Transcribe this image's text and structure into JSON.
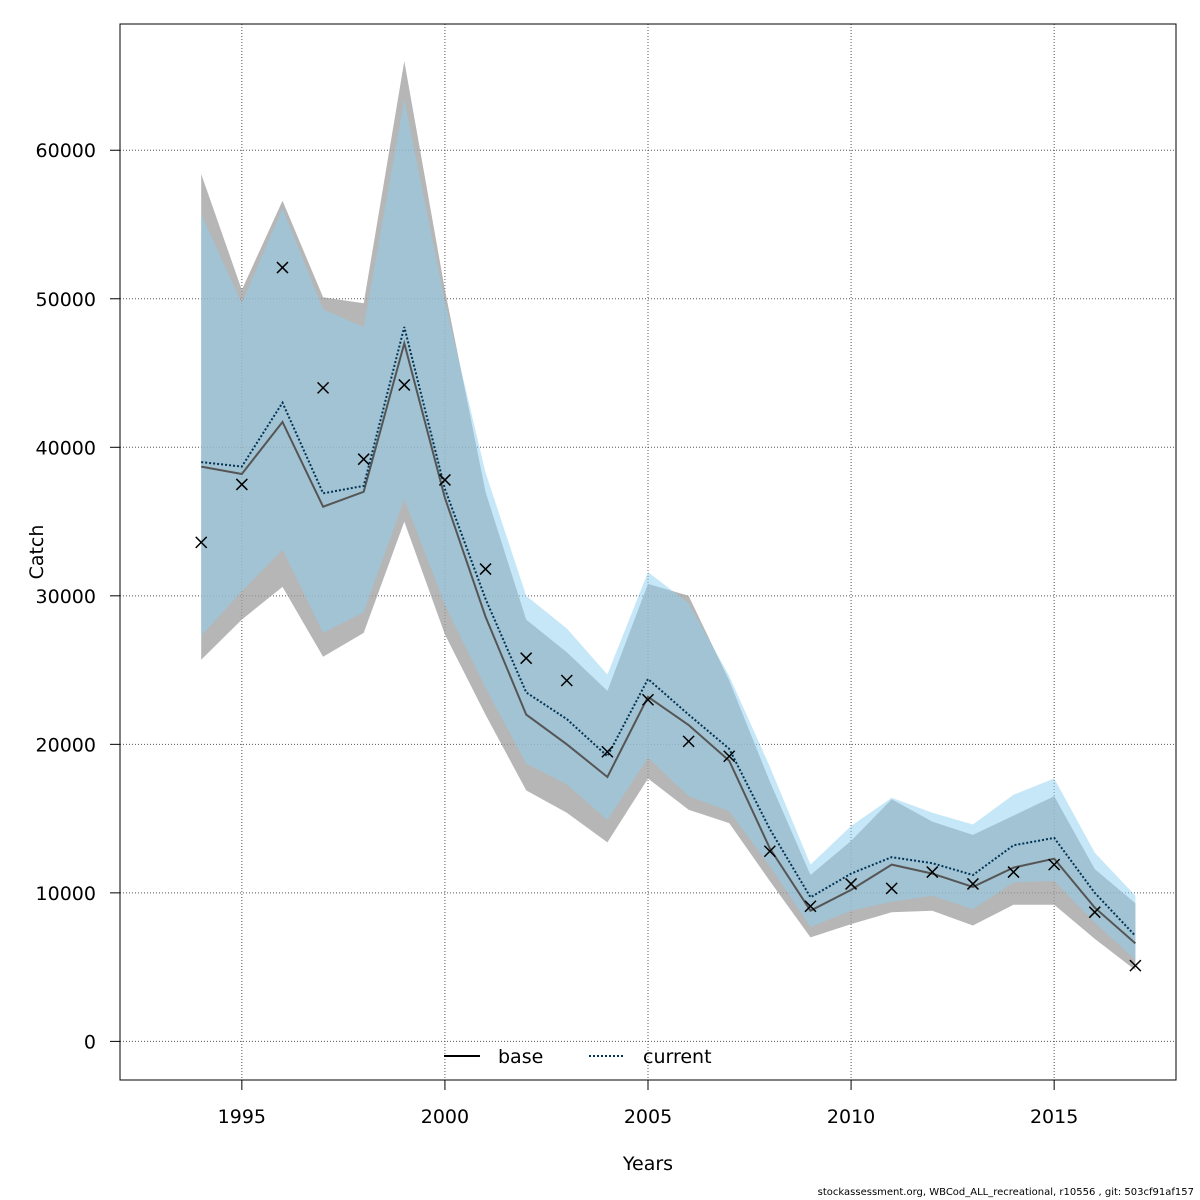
{
  "chart_data": {
    "type": "line",
    "xlabel": "Years",
    "ylabel": "Catch",
    "xlim": [
      1992,
      2018
    ],
    "ylim": [
      -2600,
      68500
    ],
    "x_ticks": [
      1995,
      2000,
      2005,
      2010,
      2015
    ],
    "x_tick_labels": [
      "1995",
      "2000",
      "2005",
      "2010",
      "2015"
    ],
    "y_ticks": [
      0,
      10000,
      20000,
      30000,
      40000,
      50000,
      60000
    ],
    "y_tick_labels": [
      "0",
      "10000",
      "20000",
      "30000",
      "40000",
      "50000",
      "60000"
    ],
    "grid": true,
    "legend_position": "bottom",
    "years": [
      1994,
      1995,
      1996,
      1997,
      1998,
      1999,
      2000,
      2001,
      2002,
      2003,
      2004,
      2005,
      2006,
      2007,
      2008,
      2009,
      2010,
      2011,
      2012,
      2013,
      2014,
      2015,
      2016,
      2017
    ],
    "series": [
      {
        "name": "base",
        "style": "solid",
        "color": "#555555",
        "band_color": "#9e9e9e",
        "values": [
          38700,
          38200,
          41700,
          36000,
          37000,
          47000,
          36600,
          28600,
          22000,
          20000,
          17800,
          23200,
          21300,
          18900,
          13000,
          8800,
          10200,
          11900,
          11300,
          10400,
          11700,
          12300,
          9000,
          6600
        ],
        "lower": [
          25700,
          28400,
          30600,
          25900,
          27500,
          35000,
          27400,
          22000,
          16900,
          15400,
          13400,
          17700,
          15600,
          14700,
          10800,
          7000,
          7900,
          8700,
          8800,
          7800,
          9200,
          9200,
          6900,
          4800
        ],
        "upper": [
          58400,
          50600,
          56600,
          50100,
          49700,
          66000,
          50600,
          37000,
          28400,
          26200,
          23600,
          30800,
          30000,
          24300,
          17500,
          11200,
          13500,
          16300,
          14800,
          13900,
          15200,
          16500,
          11600,
          9300
        ]
      },
      {
        "name": "current",
        "style": "dotted",
        "color": "#003355",
        "band_color": "#8ecfef",
        "values": [
          39000,
          38700,
          43000,
          36900,
          37400,
          48100,
          37200,
          29800,
          23500,
          21700,
          19200,
          24400,
          22000,
          19700,
          14300,
          9700,
          11300,
          12400,
          12000,
          11200,
          13200,
          13700,
          10000,
          7100
        ],
        "lower": [
          27300,
          30300,
          33100,
          27500,
          28900,
          36500,
          29400,
          23800,
          18700,
          17300,
          14900,
          19100,
          16500,
          15500,
          11800,
          7700,
          8800,
          9400,
          9800,
          8900,
          10700,
          10800,
          8000,
          5500
        ],
        "upper": [
          55700,
          49700,
          56100,
          49300,
          48100,
          63400,
          49800,
          38300,
          30000,
          27800,
          24700,
          31600,
          29500,
          24600,
          18500,
          11900,
          14500,
          16400,
          15400,
          14600,
          16600,
          17700,
          12700,
          9800
        ]
      }
    ],
    "observed": {
      "name": "observed",
      "marker": "x",
      "values": [
        33600,
        37500,
        52100,
        44000,
        39200,
        44200,
        37800,
        31800,
        25800,
        24300,
        19500,
        23000,
        20200,
        19200,
        12800,
        9100,
        10600,
        10300,
        11400,
        10600,
        11400,
        11900,
        8700,
        5100
      ]
    }
  },
  "credit": "stockassessment.org, WBCod_ALL_recreational, r10556 , git: 503cf91af157"
}
